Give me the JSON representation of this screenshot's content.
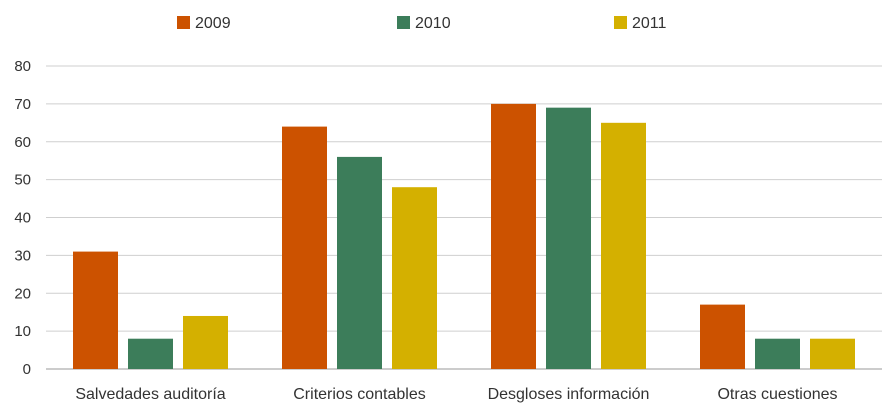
{
  "chart_data": {
    "type": "bar",
    "title": "",
    "xlabel": "",
    "ylabel": "",
    "categories": [
      "Salvedades auditoría",
      "Criterios contables",
      "Desgloses información",
      "Otras cuestiones"
    ],
    "series": [
      {
        "name": "2009",
        "color": "#cc5200",
        "values": [
          31,
          64,
          70,
          17
        ]
      },
      {
        "name": "2010",
        "color": "#3c7d5a",
        "values": [
          8,
          56,
          69,
          8
        ]
      },
      {
        "name": "2011",
        "color": "#d4b000",
        "values": [
          14,
          48,
          65,
          8
        ]
      }
    ],
    "ylim": [
      0,
      80
    ],
    "yticks": [
      0,
      10,
      20,
      30,
      40,
      50,
      60,
      70,
      80
    ],
    "grid": true,
    "legend_position": "top-center"
  }
}
